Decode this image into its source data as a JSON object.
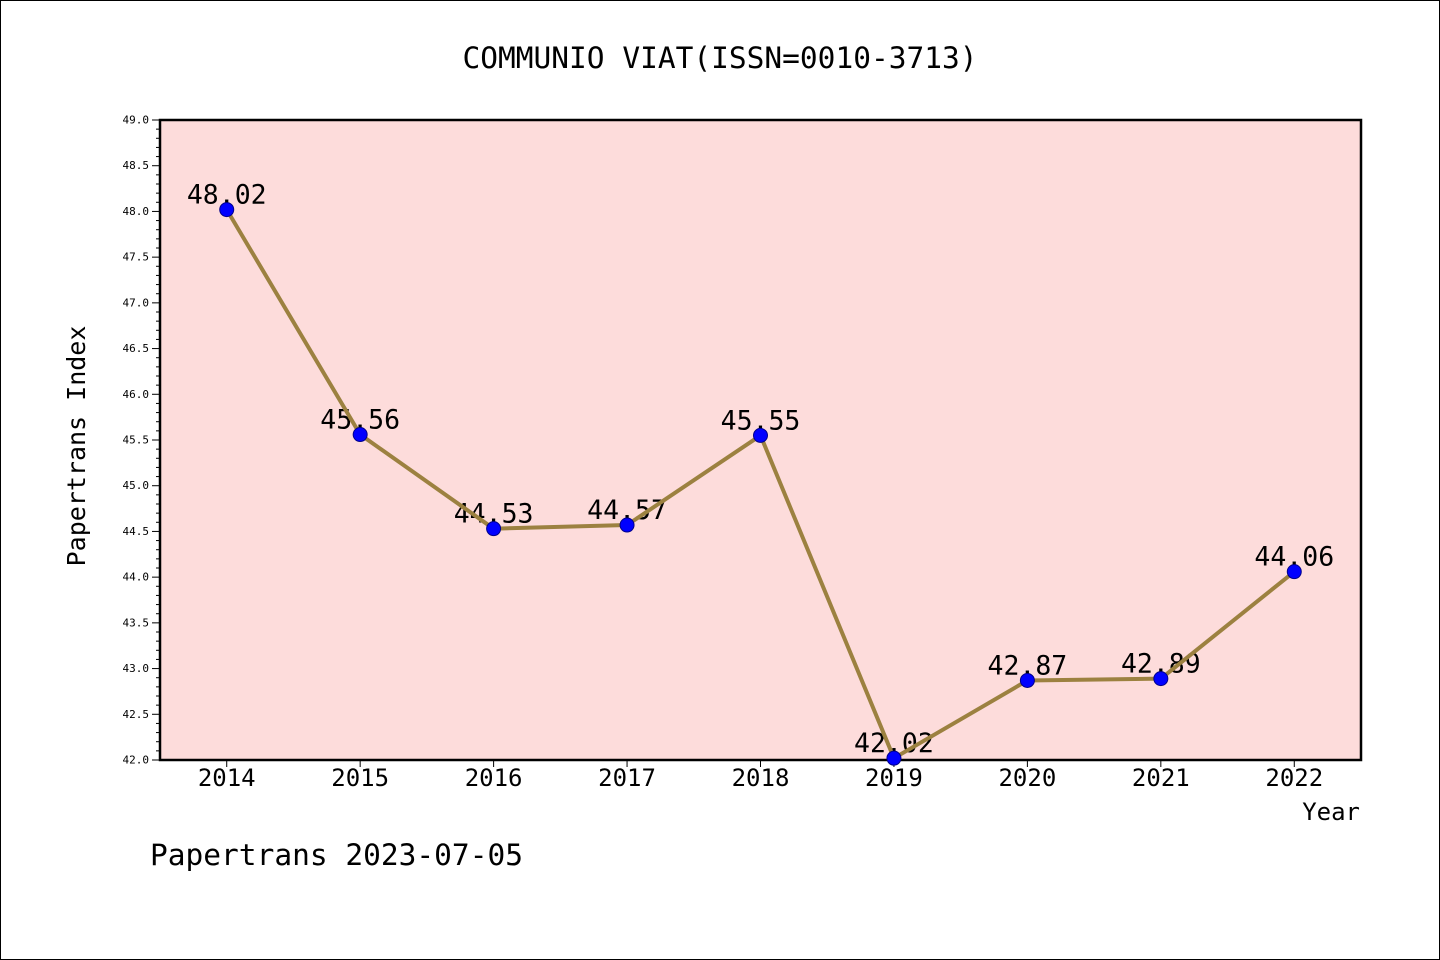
{
  "chart_data": {
    "type": "line",
    "title": "COMMUNIO VIAT(ISSN=0010-3713)",
    "xlabel": "Year",
    "ylabel": "Papertrans Index",
    "categories": [
      "2014",
      "2015",
      "2016",
      "2017",
      "2018",
      "2019",
      "2020",
      "2021",
      "2022"
    ],
    "values": [
      48.02,
      45.56,
      44.53,
      44.57,
      45.55,
      42.02,
      42.87,
      42.89,
      44.06
    ],
    "ylim": [
      42.0,
      49.0
    ],
    "yticks": [
      42.0,
      42.5,
      43.0,
      43.5,
      44.0,
      44.5,
      45.0,
      45.5,
      46.0,
      46.5,
      47.0,
      47.5,
      48.0,
      48.5,
      49.0
    ],
    "grid": false,
    "data_labels_shown": true,
    "colors": {
      "plot_background": "#fddcdb",
      "line": "#9c8140",
      "marker_fill": "#0000ff",
      "marker_edge": "#00008b"
    }
  },
  "footer": {
    "text": "Papertrans 2023-07-05"
  }
}
